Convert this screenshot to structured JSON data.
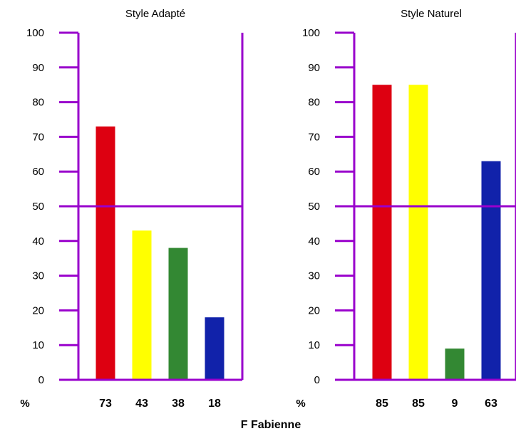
{
  "footer_label": "F Fabienne",
  "axis_color": "#9900cc",
  "bar_colors": [
    "#dd0011",
    "#ffff00",
    "#338833",
    "#1122aa"
  ],
  "chart_data": [
    {
      "type": "bar",
      "title": "Style Adapté",
      "unit_label": "%",
      "ylim": [
        0,
        100
      ],
      "yticks": [
        0,
        10,
        20,
        30,
        40,
        50,
        60,
        70,
        80,
        90,
        100
      ],
      "reference_line": 50,
      "values": [
        73,
        43,
        38,
        18
      ],
      "value_labels": [
        "73",
        "43",
        "38",
        "18"
      ]
    },
    {
      "type": "bar",
      "title": "Style Naturel",
      "unit_label": "%",
      "ylim": [
        0,
        100
      ],
      "yticks": [
        0,
        10,
        20,
        30,
        40,
        50,
        60,
        70,
        80,
        90,
        100
      ],
      "reference_line": 50,
      "values": [
        85,
        85,
        9,
        63
      ],
      "value_labels": [
        "85",
        "85",
        "9",
        "63"
      ]
    }
  ]
}
